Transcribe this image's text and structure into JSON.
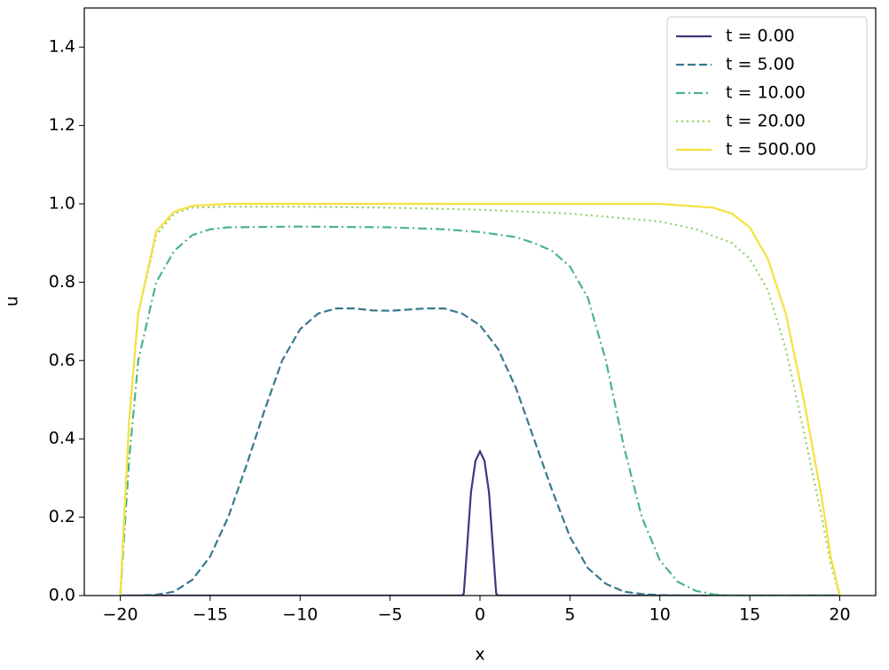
{
  "chart_data": {
    "type": "line",
    "xlabel": "x",
    "ylabel": "u",
    "xlim": [
      -22,
      22
    ],
    "ylim": [
      0,
      1.5
    ],
    "xticks": [
      {
        "value": -20,
        "label": "−20"
      },
      {
        "value": -15,
        "label": "−15"
      },
      {
        "value": -10,
        "label": "−10"
      },
      {
        "value": -5,
        "label": "−5"
      },
      0,
      5,
      10,
      15,
      20
    ],
    "yticks": [
      {
        "value": 0,
        "label": "0.0"
      },
      {
        "value": 0.2,
        "label": "0.2"
      },
      {
        "value": 0.4,
        "label": "0.4"
      },
      {
        "value": 0.6,
        "label": "0.6"
      },
      {
        "value": 0.8,
        "label": "0.8"
      },
      {
        "value": 1,
        "label": "1.0"
      },
      {
        "value": 1.2,
        "label": "1.2"
      },
      {
        "value": 1.4,
        "label": "1.4"
      }
    ],
    "legend": "upper right",
    "series": [
      {
        "name": "t = 0.00",
        "color": "#46327e",
        "linestyle": "solid",
        "x": [
          -20,
          -1,
          -0.9,
          -0.75,
          -0.5,
          -0.25,
          0,
          0.25,
          0.5,
          0.75,
          0.9,
          1,
          20
        ],
        "values": [
          0,
          0,
          0.005,
          0.102,
          0.264,
          0.344,
          0.368,
          0.344,
          0.264,
          0.102,
          0.005,
          0,
          0
        ]
      },
      {
        "name": "t = 5.00",
        "color": "#38788e",
        "linestyle": "dashed",
        "x": [
          -20,
          -19,
          -18,
          -17,
          -16,
          -15,
          -14,
          -13,
          -12,
          -11,
          -10,
          -9,
          -8,
          -7,
          -6,
          -5,
          -4,
          -3,
          -2,
          -1,
          0,
          1,
          2,
          3,
          4,
          5,
          6,
          7,
          8,
          9,
          10,
          12,
          14,
          16,
          18,
          20
        ],
        "values": [
          0,
          0,
          0.002,
          0.01,
          0.04,
          0.1,
          0.2,
          0.33,
          0.47,
          0.6,
          0.68,
          0.72,
          0.733,
          0.733,
          0.728,
          0.727,
          0.73,
          0.733,
          0.733,
          0.72,
          0.69,
          0.63,
          0.53,
          0.4,
          0.27,
          0.15,
          0.07,
          0.03,
          0.01,
          0.004,
          0.001,
          0,
          0,
          0,
          0,
          0
        ]
      },
      {
        "name": "t = 10.00",
        "color": "#4bb38b",
        "linestyle": "dashdot",
        "x": [
          -20,
          -19.5,
          -19,
          -18,
          -17,
          -16,
          -15,
          -14,
          -10,
          -5,
          -2,
          0,
          2,
          3,
          4,
          5,
          6,
          7,
          8,
          9,
          10,
          11,
          12,
          13,
          14,
          20
        ],
        "values": [
          0,
          0.35,
          0.6,
          0.8,
          0.88,
          0.92,
          0.935,
          0.94,
          0.942,
          0.94,
          0.935,
          0.928,
          0.915,
          0.9,
          0.88,
          0.84,
          0.76,
          0.6,
          0.38,
          0.2,
          0.09,
          0.035,
          0.012,
          0.003,
          0,
          0
        ]
      },
      {
        "name": "t = 20.00",
        "color": "#8fd163",
        "linestyle": "dotted",
        "x": [
          -20,
          -19.5,
          -19,
          -18,
          -17,
          -16,
          -14,
          -10,
          -5,
          0,
          5,
          10,
          12,
          14,
          15,
          16,
          17,
          18,
          19,
          19.5,
          20
        ],
        "values": [
          0,
          0.45,
          0.72,
          0.92,
          0.975,
          0.99,
          0.993,
          0.993,
          0.99,
          0.985,
          0.975,
          0.955,
          0.935,
          0.9,
          0.86,
          0.78,
          0.63,
          0.42,
          0.2,
          0.08,
          0
        ]
      },
      {
        "name": "t = 500.00",
        "color": "#f6e03f",
        "linestyle": "solid",
        "x": [
          -20,
          -19.5,
          -19,
          -18,
          -17,
          -16,
          -14,
          0,
          10,
          13,
          14,
          15,
          16,
          17,
          18,
          19,
          19.5,
          20
        ],
        "values": [
          0,
          0.45,
          0.72,
          0.93,
          0.98,
          0.995,
          1,
          1,
          1,
          0.99,
          0.975,
          0.94,
          0.86,
          0.72,
          0.5,
          0.25,
          0.1,
          0
        ]
      }
    ]
  }
}
